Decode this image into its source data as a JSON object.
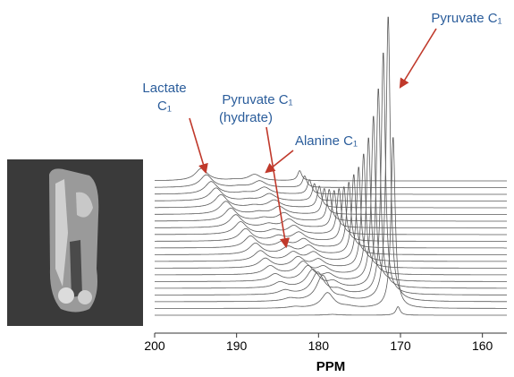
{
  "chart_data": {
    "type": "waterfall",
    "x_label": "PPM",
    "xlim": [
      200,
      158
    ],
    "xticks": [
      200,
      190,
      180,
      170,
      160
    ],
    "x": [
      182.3,
      178.3,
      175.8,
      170.3
    ],
    "color": "#5a5a5a",
    "annotations": [
      {
        "text": [
          "Lactate",
          "C₁"
        ]
      },
      {
        "text": [
          "Pyruvate C₁",
          "(hydrate)"
        ]
      },
      {
        "text": [
          "Alanine C₁"
        ]
      },
      {
        "text": [
          "Pyruvate C₁"
        ]
      }
    ],
    "series": [
      {
        "values": [
          0,
          0.3,
          0,
          3
        ]
      },
      {
        "values": [
          0.5,
          5.4,
          0.5,
          60
        ]
      },
      {
        "values": [
          1,
          9,
          1,
          100
        ]
      },
      {
        "values": [
          1.5,
          7.7,
          1.5,
          85
        ]
      },
      {
        "values": [
          2,
          6.3,
          2,
          70
        ]
      },
      {
        "values": [
          2.5,
          5.2,
          2.3,
          58
        ]
      },
      {
        "values": [
          3,
          4.3,
          2.6,
          48
        ]
      },
      {
        "values": [
          3.3,
          3.6,
          2.8,
          40
        ]
      },
      {
        "values": [
          3.6,
          3,
          3,
          33
        ]
      },
      {
        "values": [
          3.9,
          2.5,
          3,
          28
        ]
      },
      {
        "values": [
          4.1,
          2.1,
          3,
          23
        ]
      },
      {
        "values": [
          4.3,
          1.7,
          3,
          19
        ]
      },
      {
        "values": [
          4.4,
          1.4,
          3,
          16
        ]
      },
      {
        "values": [
          4.5,
          1.2,
          2.9,
          13
        ]
      },
      {
        "values": [
          4.5,
          1,
          2.8,
          11
        ]
      },
      {
        "values": [
          4.5,
          0.8,
          2.7,
          9
        ]
      },
      {
        "values": [
          4.5,
          0.7,
          2.6,
          7.5
        ]
      },
      {
        "values": [
          4.5,
          0.5,
          2.5,
          6
        ]
      },
      {
        "values": [
          4.4,
          0.5,
          2.4,
          5
        ]
      },
      {
        "values": [
          4.4,
          0.4,
          2.3,
          4
        ]
      },
      {
        "values": [
          4.3,
          0.3,
          2.2,
          3.5
        ]
      }
    ]
  }
}
